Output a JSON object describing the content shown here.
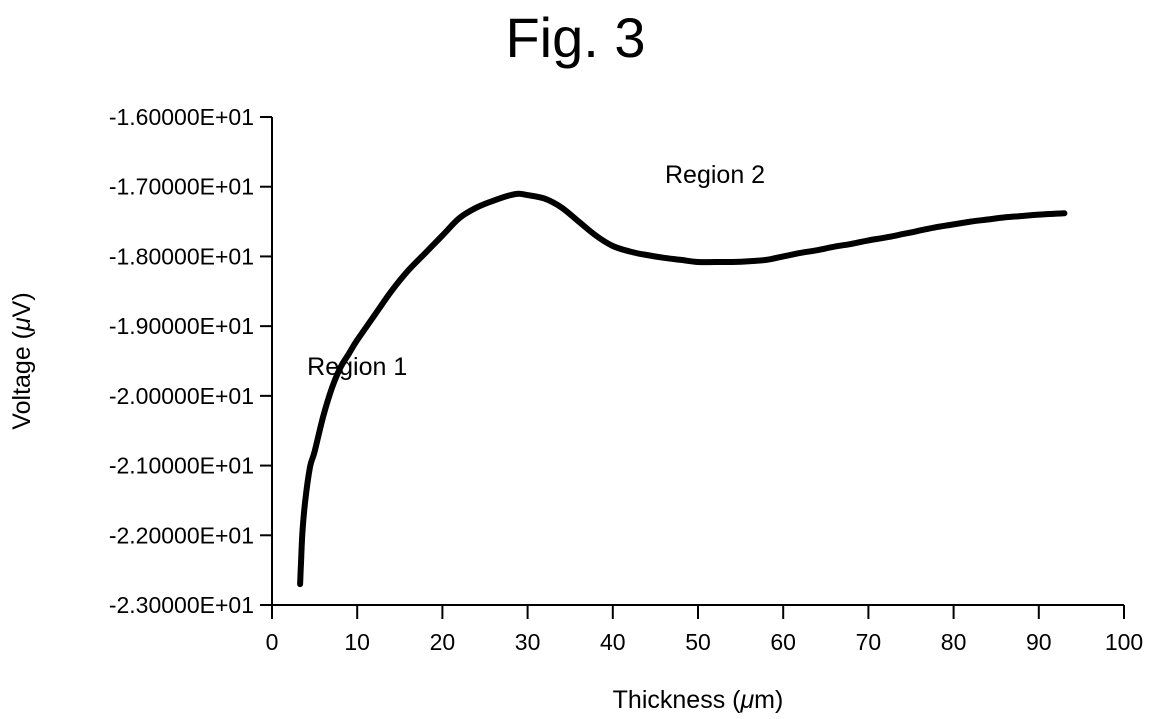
{
  "figure": {
    "title": "Fig. 3"
  },
  "chart_data": {
    "type": "line",
    "title": "Fig. 3",
    "xlabel_prefix": "Thickness (",
    "xlabel_unit": "μ",
    "xlabel_suffix": "m)",
    "ylabel_prefix": "Voltage (",
    "ylabel_unit": "μ",
    "ylabel_suffix": "V)",
    "xlim": [
      0,
      100
    ],
    "ylim": [
      -23,
      -16
    ],
    "grid": false,
    "x_ticks": [
      0,
      10,
      20,
      30,
      40,
      50,
      60,
      70,
      80,
      90,
      100
    ],
    "x_tick_labels": [
      "0",
      "10",
      "20",
      "30",
      "40",
      "50",
      "60",
      "70",
      "80",
      "90",
      "100"
    ],
    "y_ticks": [
      -16,
      -17,
      -18,
      -19,
      -20,
      -21,
      -22,
      -23
    ],
    "y_tick_labels": [
      "-1.60000E+01",
      "-1.70000E+01",
      "-1.80000E+01",
      "-1.90000E+01",
      "-2.00000E+01",
      "-2.10000E+01",
      "-2.20000E+01",
      "-2.30000E+01"
    ],
    "annotations": [
      {
        "text": "Region 1",
        "x": 10,
        "y": -19.7
      },
      {
        "text": "Region 2",
        "x": 52,
        "y": -16.95
      }
    ],
    "series": [
      {
        "x": [
          3.3,
          3.4,
          3.6,
          4,
          4.5,
          5,
          6,
          7,
          8,
          9,
          10,
          12,
          14,
          16,
          18,
          20,
          22,
          24,
          26,
          28,
          29,
          30,
          32,
          34,
          36,
          38,
          40,
          42,
          44,
          46,
          48,
          50,
          52,
          54,
          56,
          58,
          60,
          62,
          64,
          66,
          68,
          70,
          72,
          74,
          76,
          78,
          80,
          82,
          84,
          86,
          88,
          90,
          93
        ],
        "y": [
          -22.7,
          -22.4,
          -21.9,
          -21.4,
          -21.0,
          -20.8,
          -20.3,
          -19.9,
          -19.6,
          -19.4,
          -19.2,
          -18.85,
          -18.5,
          -18.2,
          -17.95,
          -17.7,
          -17.45,
          -17.3,
          -17.2,
          -17.12,
          -17.1,
          -17.12,
          -17.17,
          -17.3,
          -17.5,
          -17.7,
          -17.85,
          -17.93,
          -17.98,
          -18.02,
          -18.05,
          -18.08,
          -18.08,
          -18.08,
          -18.07,
          -18.05,
          -18.0,
          -17.95,
          -17.91,
          -17.86,
          -17.82,
          -17.77,
          -17.73,
          -17.68,
          -17.63,
          -17.58,
          -17.54,
          -17.5,
          -17.47,
          -17.44,
          -17.42,
          -17.4,
          -17.38
        ]
      }
    ]
  }
}
